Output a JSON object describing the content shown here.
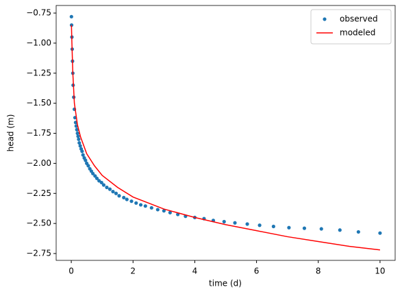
{
  "chart_data": {
    "type": "scatter-line",
    "xlabel": "time (d)",
    "ylabel": "head (m)",
    "xlim": [
      -0.49,
      10.49
    ],
    "xticks": [
      0,
      2,
      4,
      6,
      8,
      10
    ],
    "ylim": [
      -2.807,
      -0.687
    ],
    "yticks": [
      {
        "value": -0.75,
        "label": "−0.75"
      },
      {
        "value": -1.0,
        "label": "−1.00"
      },
      {
        "value": -1.25,
        "label": "−1.25"
      },
      {
        "value": -1.5,
        "label": "−1.50"
      },
      {
        "value": -1.75,
        "label": "−1.75"
      },
      {
        "value": -2.0,
        "label": "−2.00"
      },
      {
        "value": -2.25,
        "label": "−2.25"
      },
      {
        "value": -2.5,
        "label": "−2.50"
      },
      {
        "value": -2.75,
        "label": "−2.75"
      }
    ],
    "legend": "upper right",
    "series": [
      {
        "name": "observed",
        "color": "#1f77b4",
        "style": "marker",
        "x": [
          0.005,
          0.01,
          0.02,
          0.03,
          0.04,
          0.05,
          0.06,
          0.08,
          0.1,
          0.12,
          0.14,
          0.16,
          0.18,
          0.2,
          0.22,
          0.24,
          0.26,
          0.29,
          0.32,
          0.35,
          0.38,
          0.42,
          0.46,
          0.5,
          0.55,
          0.6,
          0.65,
          0.7,
          0.77,
          0.83,
          0.9,
          0.98,
          1.05,
          1.15,
          1.25,
          1.35,
          1.45,
          1.55,
          1.7,
          1.8,
          1.95,
          2.1,
          2.25,
          2.4,
          2.6,
          2.8,
          3.0,
          3.2,
          3.45,
          3.7,
          4.0,
          4.3,
          4.6,
          4.95,
          5.3,
          5.7,
          6.1,
          6.55,
          7.05,
          7.55,
          8.1,
          8.7,
          9.3,
          10.0
        ],
        "values": [
          -0.78,
          -0.85,
          -0.95,
          -1.05,
          -1.15,
          -1.25,
          -1.35,
          -1.45,
          -1.55,
          -1.62,
          -1.66,
          -1.69,
          -1.72,
          -1.75,
          -1.775,
          -1.8,
          -1.83,
          -1.855,
          -1.88,
          -1.9,
          -1.93,
          -1.955,
          -1.975,
          -2.0,
          -2.02,
          -2.045,
          -2.065,
          -2.085,
          -2.105,
          -2.125,
          -2.145,
          -2.16,
          -2.18,
          -2.2,
          -2.215,
          -2.235,
          -2.25,
          -2.27,
          -2.285,
          -2.3,
          -2.315,
          -2.33,
          -2.345,
          -2.355,
          -2.37,
          -2.385,
          -2.395,
          -2.41,
          -2.425,
          -2.44,
          -2.45,
          -2.46,
          -2.475,
          -2.485,
          -2.495,
          -2.505,
          -2.515,
          -2.525,
          -2.535,
          -2.54,
          -2.545,
          -2.555,
          -2.57,
          -2.58
        ]
      },
      {
        "name": "modeled",
        "color": "red",
        "style": "line",
        "x": [
          0.005,
          0.02,
          0.05,
          0.1,
          0.2,
          0.3,
          0.5,
          0.75,
          1,
          1.5,
          2,
          3,
          4,
          5,
          6,
          7,
          8,
          9,
          10
        ],
        "values": [
          -0.85,
          -1.0,
          -1.25,
          -1.5,
          -1.68,
          -1.78,
          -1.92,
          -2.02,
          -2.1,
          -2.2,
          -2.28,
          -2.38,
          -2.45,
          -2.51,
          -2.56,
          -2.61,
          -2.65,
          -2.69,
          -2.72
        ]
      }
    ]
  }
}
